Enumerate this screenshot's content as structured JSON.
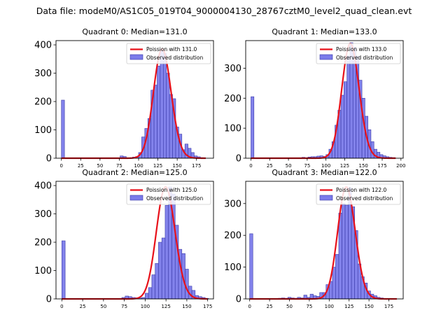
{
  "figure_title": "Data file: modeM0/AS1C05_019T04_9000004130_28767cztM0_level2_quad_clean.evt",
  "chart_data": [
    {
      "type": "bar",
      "title": "Quadrant 0: Median=131.0",
      "median": 131.0,
      "xlim": [
        -7,
        197
      ],
      "ylim": [
        0,
        415
      ],
      "xticks": [
        0,
        25,
        50,
        75,
        100,
        125,
        150,
        175
      ],
      "yticks": [
        0,
        100,
        200,
        300,
        400
      ],
      "bin_width": 4,
      "histogram": {
        "name": "Observed distribution",
        "color": "#7b7bea",
        "bin_starts": [
          0,
          76,
          80,
          92,
          96,
          100,
          104,
          108,
          112,
          116,
          120,
          124,
          128,
          132,
          136,
          140,
          144,
          148,
          152,
          156,
          160,
          164,
          168,
          172,
          176,
          180
        ],
        "counts": [
          205,
          8,
          6,
          4,
          6,
          20,
          75,
          105,
          140,
          240,
          258,
          325,
          385,
          370,
          300,
          225,
          210,
          110,
          85,
          30,
          50,
          35,
          20,
          8,
          5,
          2
        ]
      },
      "fit": {
        "name": "Poission with 131.0",
        "color": "#e8111a",
        "mu": 131.0,
        "peak": 385,
        "x_range": [
          0,
          187
        ]
      }
    },
    {
      "type": "bar",
      "title": "Quadrant 1: Median=133.0",
      "median": 133.0,
      "xlim": [
        -7,
        203
      ],
      "ylim": [
        0,
        392
      ],
      "xticks": [
        0,
        25,
        50,
        75,
        100,
        125,
        150,
        175,
        200
      ],
      "yticks": [
        0,
        100,
        200,
        300
      ],
      "bin_width": 4,
      "histogram": {
        "name": "Observed distribution",
        "color": "#7b7bea",
        "bin_starts": [
          0,
          68,
          76,
          80,
          84,
          88,
          92,
          96,
          100,
          104,
          108,
          112,
          116,
          120,
          124,
          128,
          132,
          136,
          140,
          144,
          148,
          152,
          156,
          160,
          164,
          168,
          172,
          176,
          180,
          184,
          188
        ],
        "counts": [
          205,
          3,
          4,
          5,
          5,
          7,
          8,
          6,
          12,
          30,
          55,
          110,
          160,
          210,
          255,
          340,
          385,
          370,
          340,
          260,
          200,
          140,
          95,
          55,
          30,
          20,
          12,
          8,
          5,
          3,
          2
        ]
      },
      "fit": {
        "name": "Poission with 133.0",
        "color": "#e8111a",
        "mu": 133.0,
        "peak": 382,
        "x_range": [
          0,
          193
        ]
      }
    },
    {
      "type": "bar",
      "title": "Quadrant 2: Median=125.0",
      "median": 125.0,
      "xlim": [
        -7,
        182
      ],
      "ylim": [
        0,
        415
      ],
      "xticks": [
        0,
        25,
        50,
        75,
        100,
        125,
        150,
        175
      ],
      "yticks": [
        0,
        100,
        200,
        300,
        400
      ],
      "bin_width": 4,
      "histogram": {
        "name": "Observed distribution",
        "color": "#7b7bea",
        "bin_starts": [
          0,
          72,
          76,
          80,
          84,
          88,
          92,
          96,
          100,
          104,
          108,
          112,
          116,
          120,
          124,
          128,
          132,
          136,
          140,
          144,
          148,
          152,
          156,
          160,
          164,
          168,
          172
        ],
        "counts": [
          205,
          5,
          10,
          8,
          5,
          4,
          3,
          5,
          20,
          40,
          85,
          125,
          200,
          215,
          330,
          395,
          370,
          260,
          175,
          160,
          105,
          45,
          30,
          12,
          8,
          5,
          2
        ]
      },
      "fit": {
        "name": "Poission with 125.0",
        "color": "#e8111a",
        "mu": 125.0,
        "peak": 395,
        "x_range": [
          0,
          175
        ]
      }
    },
    {
      "type": "bar",
      "title": "Quadrant 3: Median=122.0",
      "median": 122.0,
      "xlim": [
        -5,
        193
      ],
      "ylim": [
        0,
        370
      ],
      "xticks": [
        0,
        25,
        50,
        75,
        100,
        125,
        150,
        175
      ],
      "yticks": [
        0,
        100,
        200,
        300
      ],
      "bin_width": 4,
      "histogram": {
        "name": "Observed distribution",
        "color": "#7b7bea",
        "bin_starts": [
          0,
          36,
          40,
          44,
          48,
          52,
          56,
          60,
          64,
          68,
          72,
          76,
          80,
          84,
          88,
          92,
          96,
          100,
          104,
          108,
          112,
          116,
          120,
          124,
          128,
          132,
          136,
          140,
          144,
          148,
          152,
          156,
          160,
          164
        ],
        "counts": [
          205,
          2,
          3,
          2,
          5,
          3,
          2,
          5,
          3,
          12,
          5,
          15,
          10,
          8,
          20,
          20,
          45,
          55,
          100,
          140,
          270,
          300,
          295,
          350,
          290,
          215,
          110,
          70,
          50,
          25,
          15,
          10,
          5,
          3
        ]
      },
      "fit": {
        "name": "Poission with 122.0",
        "color": "#e8111a",
        "mu": 122.0,
        "peak": 352,
        "x_range": [
          0,
          185
        ]
      }
    }
  ]
}
